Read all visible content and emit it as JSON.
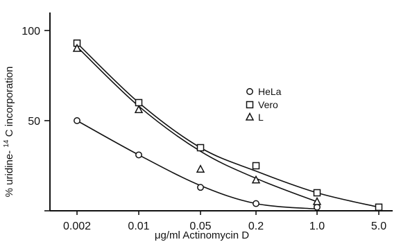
{
  "chart_data": {
    "type": "scatter",
    "title": "",
    "xlabel": "μg/ml Actinomycin D",
    "ylabel_text": "% uridine-",
    "ylabel_superscript": "14",
    "ylabel_text_after": "C incorporation",
    "x_ticks": [
      "0.002",
      "0.01",
      "0.05",
      "0.2",
      "1.0",
      "5.0"
    ],
    "x_tick_values": [
      0.002,
      0.01,
      0.05,
      0.2,
      1.0,
      5.0
    ],
    "y_ticks": [
      0,
      50,
      100
    ],
    "y_tick_labels": [
      "50",
      "100"
    ],
    "xlim": [
      0.0006,
      10
    ],
    "ylim": [
      0,
      100
    ],
    "x_scale": "categorical log",
    "legend": "middle-right",
    "series": [
      {
        "name": "HeLa",
        "marker": "circle",
        "x": [
          0.002,
          0.01,
          0.05,
          0.2,
          1.0
        ],
        "y": [
          50,
          31,
          13,
          4,
          2
        ]
      },
      {
        "name": "Vero",
        "marker": "square",
        "x": [
          0.002,
          0.01,
          0.05,
          0.2,
          1.0,
          5.0
        ],
        "y": [
          93,
          60,
          35,
          25,
          10,
          2
        ]
      },
      {
        "name": "L",
        "marker": "triangle",
        "x": [
          0.002,
          0.01,
          0.05,
          0.2,
          1.0
        ],
        "y": [
          90,
          56,
          23,
          17,
          5
        ]
      }
    ],
    "colors": {
      "ink": "#111111",
      "background": "#ffffff"
    }
  }
}
